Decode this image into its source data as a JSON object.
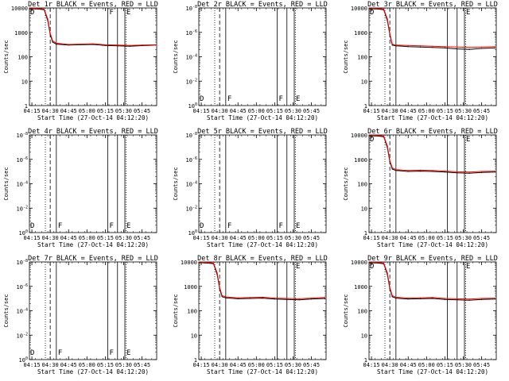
{
  "figure_title": "",
  "chart_data": [
    {
      "id": "det1r",
      "type": "line",
      "title": "Det 1r BLACK = Events, RED = LLD",
      "xlabel": "Start Time (27-Oct-14 04:12:20)",
      "ylabel": "Counts/sec",
      "yscale": "log",
      "ylim": [
        1,
        10000
      ],
      "y_tick_labels": [
        "1",
        "10",
        "100",
        "1000",
        "10000"
      ],
      "x_tick_labels": [
        "04:15",
        "04:30",
        "04:45",
        "05:00",
        "05:15",
        "05:30",
        "05:45"
      ],
      "x_ticks_min": [
        15,
        30,
        45,
        60,
        75,
        90,
        105
      ],
      "xlim": [
        13,
        117
      ],
      "markers": [
        {
          "min": 26,
          "style": "dotted",
          "label": ""
        },
        {
          "min": 30,
          "style": "dashed",
          "label": ""
        },
        {
          "min": 35,
          "style": "solid",
          "label": ""
        },
        {
          "min": 77,
          "style": "solid",
          "label": "F"
        },
        {
          "min": 85,
          "style": "solid",
          "label": ""
        },
        {
          "min": 91,
          "style": "solid",
          "label": "E"
        },
        {
          "min": 92,
          "style": "dotted",
          "label": ""
        }
      ],
      "corner_label": "D",
      "has_data": true,
      "series": [
        {
          "name": "Events",
          "color": "#000000",
          "x": [
            13,
            20,
            25,
            28,
            30,
            32,
            35,
            45,
            55,
            65,
            75,
            85,
            95,
            105,
            116
          ],
          "y": [
            9500,
            9000,
            8500,
            3000,
            800,
            400,
            330,
            300,
            310,
            320,
            290,
            280,
            270,
            285,
            300
          ]
        },
        {
          "name": "LLD",
          "color": "#ff0000",
          "x": [
            13,
            20,
            25,
            28,
            30,
            32,
            35,
            45,
            55,
            65,
            75,
            85,
            95,
            105,
            116
          ],
          "y": [
            10000,
            9500,
            9000,
            3500,
            900,
            450,
            360,
            320,
            330,
            340,
            310,
            300,
            290,
            300,
            310
          ]
        }
      ]
    },
    {
      "id": "det2r",
      "type": "line",
      "title": "Det 2r BLACK = Events, RED = LLD",
      "xlabel": "Start Time (27-Oct-14 04:12:20)",
      "ylabel": "Counts/sec",
      "yscale": "log",
      "ylim": [
        1,
        1e-08
      ],
      "y_tick_labels": [
        "10^0",
        "10^-2",
        "10^-4",
        "10^-6",
        "10^-8"
      ],
      "x_tick_labels": [
        "04:15",
        "04:30",
        "04:45",
        "05:00",
        "05:15",
        "05:30",
        "05:45"
      ],
      "x_ticks_min": [
        15,
        30,
        45,
        60,
        75,
        90,
        105
      ],
      "xlim": [
        13,
        117
      ],
      "markers": [
        {
          "min": 26,
          "style": "dotted",
          "label": ""
        },
        {
          "min": 30,
          "style": "dashed",
          "label": ""
        },
        {
          "min": 35,
          "style": "solid",
          "label": "F"
        },
        {
          "min": 77,
          "style": "solid",
          "label": "F"
        },
        {
          "min": 85,
          "style": "solid",
          "label": ""
        },
        {
          "min": 91,
          "style": "solid",
          "label": "E"
        },
        {
          "min": 92,
          "style": "dotted",
          "label": ""
        }
      ],
      "corner_label": "D",
      "has_data": false,
      "series": []
    },
    {
      "id": "det3r",
      "type": "line",
      "title": "Det 3r BLACK = Events, RED = LLD",
      "xlabel": "Start Time (27-Oct-14 04:12:20)",
      "ylabel": "Counts/sec",
      "yscale": "log",
      "ylim": [
        1,
        10000
      ],
      "y_tick_labels": [
        "1",
        "10",
        "100",
        "1000",
        "10000"
      ],
      "x_tick_labels": [
        "04:15",
        "04:30",
        "04:45",
        "05:00",
        "05:15",
        "05:30",
        "05:45"
      ],
      "x_ticks_min": [
        15,
        30,
        45,
        60,
        75,
        90,
        105
      ],
      "xlim": [
        13,
        117
      ],
      "markers": [
        {
          "min": 26,
          "style": "dotted",
          "label": ""
        },
        {
          "min": 30,
          "style": "dashed",
          "label": ""
        },
        {
          "min": 35,
          "style": "solid",
          "label": ""
        },
        {
          "min": 77,
          "style": "solid",
          "label": ""
        },
        {
          "min": 85,
          "style": "solid",
          "label": ""
        },
        {
          "min": 91,
          "style": "solid",
          "label": "E"
        },
        {
          "min": 92,
          "style": "dotted",
          "label": ""
        }
      ],
      "corner_label": "D",
      "has_data": true,
      "series": [
        {
          "name": "Events",
          "color": "#000000",
          "x": [
            13,
            20,
            25,
            28,
            30,
            32,
            35,
            45,
            55,
            65,
            75,
            85,
            95,
            105,
            116
          ],
          "y": [
            9500,
            9000,
            8500,
            3000,
            800,
            300,
            280,
            260,
            250,
            240,
            230,
            210,
            200,
            220,
            230
          ]
        },
        {
          "name": "LLD",
          "color": "#ff0000",
          "x": [
            13,
            20,
            25,
            28,
            30,
            32,
            35,
            45,
            55,
            65,
            75,
            85,
            95,
            105,
            116
          ],
          "y": [
            10000,
            9500,
            9000,
            3500,
            900,
            330,
            300,
            290,
            280,
            270,
            260,
            250,
            240,
            250,
            260
          ]
        }
      ]
    },
    {
      "id": "det4r",
      "type": "line",
      "title": "Det 4r BLACK = Events, RED = LLD",
      "xlabel": "Start Time (27-Oct-14 04:12:20)",
      "ylabel": "Counts/sec",
      "yscale": "log",
      "ylim": [
        1,
        1e-08
      ],
      "y_tick_labels": [
        "10^0",
        "10^-2",
        "10^-4",
        "10^-6",
        "10^-8"
      ],
      "x_tick_labels": [
        "04:15",
        "04:30",
        "04:45",
        "05:00",
        "05:15",
        "05:30",
        "05:45"
      ],
      "x_ticks_min": [
        15,
        30,
        45,
        60,
        75,
        90,
        105
      ],
      "xlim": [
        13,
        117
      ],
      "markers": [
        {
          "min": 26,
          "style": "dotted",
          "label": ""
        },
        {
          "min": 30,
          "style": "dashed",
          "label": ""
        },
        {
          "min": 35,
          "style": "solid",
          "label": "F"
        },
        {
          "min": 77,
          "style": "solid",
          "label": "F"
        },
        {
          "min": 85,
          "style": "solid",
          "label": ""
        },
        {
          "min": 91,
          "style": "solid",
          "label": "E"
        },
        {
          "min": 92,
          "style": "dotted",
          "label": ""
        }
      ],
      "corner_label": "D",
      "has_data": false,
      "series": []
    },
    {
      "id": "det5r",
      "type": "line",
      "title": "Det 5r BLACK = Events, RED = LLD",
      "xlabel": "Start Time (27-Oct-14 04:12:20)",
      "ylabel": "Counts/sec",
      "yscale": "log",
      "ylim": [
        1,
        1e-08
      ],
      "y_tick_labels": [
        "10^0",
        "10^-2",
        "10^-4",
        "10^-6",
        "10^-8"
      ],
      "x_tick_labels": [
        "04:15",
        "04:30",
        "04:45",
        "05:00",
        "05:15",
        "05:30",
        "05:45"
      ],
      "x_ticks_min": [
        15,
        30,
        45,
        60,
        75,
        90,
        105
      ],
      "xlim": [
        13,
        117
      ],
      "markers": [
        {
          "min": 26,
          "style": "dotted",
          "label": ""
        },
        {
          "min": 30,
          "style": "dashed",
          "label": ""
        },
        {
          "min": 35,
          "style": "solid",
          "label": "F"
        },
        {
          "min": 77,
          "style": "solid",
          "label": "F"
        },
        {
          "min": 85,
          "style": "solid",
          "label": ""
        },
        {
          "min": 91,
          "style": "solid",
          "label": "E"
        },
        {
          "min": 92,
          "style": "dotted",
          "label": ""
        }
      ],
      "corner_label": "D",
      "has_data": false,
      "series": []
    },
    {
      "id": "det6r",
      "type": "line",
      "title": "Det 6r BLACK = Events, RED = LLD",
      "xlabel": "Start Time (27-Oct-14 04:12:20)",
      "ylabel": "Counts/sec",
      "yscale": "log",
      "ylim": [
        1,
        10000
      ],
      "y_tick_labels": [
        "1",
        "10",
        "100",
        "1000",
        "10000"
      ],
      "x_tick_labels": [
        "04:15",
        "04:30",
        "04:45",
        "05:00",
        "05:15",
        "05:30",
        "05:45"
      ],
      "x_ticks_min": [
        15,
        30,
        45,
        60,
        75,
        90,
        105
      ],
      "xlim": [
        13,
        117
      ],
      "markers": [
        {
          "min": 26,
          "style": "dotted",
          "label": ""
        },
        {
          "min": 30,
          "style": "dashed",
          "label": ""
        },
        {
          "min": 35,
          "style": "solid",
          "label": ""
        },
        {
          "min": 77,
          "style": "solid",
          "label": ""
        },
        {
          "min": 85,
          "style": "solid",
          "label": ""
        },
        {
          "min": 91,
          "style": "solid",
          "label": "E"
        },
        {
          "min": 92,
          "style": "dotted",
          "label": ""
        }
      ],
      "corner_label": "D",
      "has_data": true,
      "series": [
        {
          "name": "Events",
          "color": "#000000",
          "x": [
            13,
            20,
            25,
            28,
            30,
            32,
            35,
            45,
            55,
            65,
            75,
            85,
            95,
            105,
            116
          ],
          "y": [
            9500,
            9000,
            8500,
            3000,
            800,
            400,
            350,
            320,
            330,
            320,
            300,
            280,
            270,
            290,
            300
          ]
        },
        {
          "name": "LLD",
          "color": "#ff0000",
          "x": [
            13,
            20,
            25,
            28,
            30,
            32,
            35,
            45,
            55,
            65,
            75,
            85,
            95,
            105,
            116
          ],
          "y": [
            10000,
            9500,
            9000,
            3500,
            900,
            450,
            380,
            350,
            360,
            350,
            330,
            310,
            300,
            320,
            330
          ]
        }
      ]
    },
    {
      "id": "det7r",
      "type": "line",
      "title": "Det 7r BLACK = Events, RED = LLD",
      "xlabel": "Start Time (27-Oct-14 04:12:20)",
      "ylabel": "Counts/sec",
      "yscale": "log",
      "ylim": [
        1,
        1e-08
      ],
      "y_tick_labels": [
        "10^0",
        "10^-2",
        "10^-4",
        "10^-6",
        "10^-8"
      ],
      "x_tick_labels": [
        "04:15",
        "04:30",
        "04:45",
        "05:00",
        "05:15",
        "05:30",
        "05:45"
      ],
      "x_ticks_min": [
        15,
        30,
        45,
        60,
        75,
        90,
        105
      ],
      "xlim": [
        13,
        117
      ],
      "markers": [
        {
          "min": 26,
          "style": "dotted",
          "label": ""
        },
        {
          "min": 30,
          "style": "dashed",
          "label": ""
        },
        {
          "min": 35,
          "style": "solid",
          "label": "F"
        },
        {
          "min": 77,
          "style": "solid",
          "label": "F"
        },
        {
          "min": 85,
          "style": "solid",
          "label": ""
        },
        {
          "min": 91,
          "style": "solid",
          "label": "E"
        },
        {
          "min": 92,
          "style": "dotted",
          "label": ""
        }
      ],
      "corner_label": "D",
      "has_data": false,
      "series": []
    },
    {
      "id": "det8r",
      "type": "line",
      "title": "Det 8r BLACK = Events, RED = LLD",
      "xlabel": "Start Time (27-Oct-14 04:12:20)",
      "ylabel": "Counts/sec",
      "yscale": "log",
      "ylim": [
        1,
        10000
      ],
      "y_tick_labels": [
        "1",
        "10",
        "100",
        "1000",
        "10000"
      ],
      "x_tick_labels": [
        "04:15",
        "04:30",
        "04:45",
        "05:00",
        "05:15",
        "05:30",
        "05:45"
      ],
      "x_ticks_min": [
        15,
        30,
        45,
        60,
        75,
        90,
        105
      ],
      "xlim": [
        13,
        117
      ],
      "markers": [
        {
          "min": 26,
          "style": "dotted",
          "label": ""
        },
        {
          "min": 30,
          "style": "dashed",
          "label": ""
        },
        {
          "min": 35,
          "style": "solid",
          "label": ""
        },
        {
          "min": 77,
          "style": "solid",
          "label": ""
        },
        {
          "min": 85,
          "style": "solid",
          "label": ""
        },
        {
          "min": 91,
          "style": "solid",
          "label": "E"
        },
        {
          "min": 92,
          "style": "dotted",
          "label": ""
        }
      ],
      "corner_label": "",
      "has_data": true,
      "series": [
        {
          "name": "Events",
          "color": "#000000",
          "x": [
            13,
            20,
            25,
            28,
            30,
            32,
            35,
            45,
            55,
            65,
            75,
            85,
            95,
            105,
            116
          ],
          "y": [
            9500,
            9000,
            8500,
            3000,
            800,
            380,
            340,
            310,
            320,
            330,
            300,
            290,
            280,
            300,
            320
          ]
        },
        {
          "name": "LLD",
          "color": "#ff0000",
          "x": [
            13,
            20,
            25,
            28,
            30,
            32,
            35,
            45,
            55,
            65,
            75,
            85,
            95,
            105,
            116
          ],
          "y": [
            10000,
            9500,
            9000,
            3500,
            900,
            420,
            370,
            340,
            350,
            360,
            330,
            320,
            310,
            330,
            350
          ]
        }
      ]
    },
    {
      "id": "det9r",
      "type": "line",
      "title": "Det 9r BLACK = Events, RED = LLD",
      "xlabel": "Start Time (27-Oct-14 04:12:20)",
      "ylabel": "Counts/sec",
      "yscale": "log",
      "ylim": [
        1,
        10000
      ],
      "y_tick_labels": [
        "1",
        "10",
        "100",
        "1000",
        "10000"
      ],
      "x_tick_labels": [
        "04:15",
        "04:30",
        "04:45",
        "05:00",
        "05:15",
        "05:30",
        "05:45"
      ],
      "x_ticks_min": [
        15,
        30,
        45,
        60,
        75,
        90,
        105
      ],
      "xlim": [
        13,
        117
      ],
      "markers": [
        {
          "min": 26,
          "style": "dotted",
          "label": ""
        },
        {
          "min": 30,
          "style": "dashed",
          "label": ""
        },
        {
          "min": 35,
          "style": "solid",
          "label": ""
        },
        {
          "min": 77,
          "style": "solid",
          "label": ""
        },
        {
          "min": 85,
          "style": "solid",
          "label": ""
        },
        {
          "min": 91,
          "style": "solid",
          "label": "E"
        },
        {
          "min": 92,
          "style": "dotted",
          "label": ""
        }
      ],
      "corner_label": "D",
      "has_data": true,
      "series": [
        {
          "name": "Events",
          "color": "#000000",
          "x": [
            13,
            20,
            25,
            28,
            30,
            32,
            35,
            45,
            55,
            65,
            75,
            85,
            95,
            105,
            116
          ],
          "y": [
            9500,
            9000,
            8500,
            3000,
            800,
            380,
            330,
            300,
            310,
            320,
            290,
            280,
            270,
            290,
            300
          ]
        },
        {
          "name": "LLD",
          "color": "#ff0000",
          "x": [
            13,
            20,
            25,
            28,
            30,
            32,
            35,
            45,
            55,
            65,
            75,
            85,
            95,
            105,
            116
          ],
          "y": [
            10000,
            9500,
            9000,
            3500,
            900,
            420,
            360,
            330,
            340,
            350,
            320,
            310,
            300,
            320,
            330
          ]
        }
      ]
    }
  ]
}
